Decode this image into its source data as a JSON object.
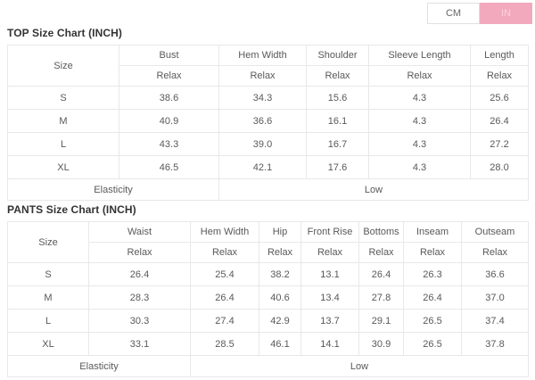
{
  "unit_toggle": {
    "cm_label": "CM",
    "in_label": "IN",
    "active_unit": "IN"
  },
  "colors": {
    "accent_pink": "#f3a9bd",
    "active_text": "#f9d2dd",
    "table_border": "#e8e8e8",
    "body_text": "#595959",
    "title_text": "#333333"
  },
  "top_chart": {
    "title": "TOP Size Chart (INCH)",
    "col_header": "Size",
    "columns": [
      "Bust",
      "Hem Width",
      "Shoulder",
      "Sleeve Length",
      "Length"
    ],
    "sub_headers": [
      "Relax",
      "Relax",
      "Relax",
      "Relax",
      "Relax"
    ],
    "rows": [
      {
        "size": "S",
        "values": [
          "38.6",
          "34.3",
          "15.6",
          "4.3",
          "25.6"
        ]
      },
      {
        "size": "M",
        "values": [
          "40.9",
          "36.6",
          "16.1",
          "4.3",
          "26.4"
        ]
      },
      {
        "size": "L",
        "values": [
          "43.3",
          "39.0",
          "16.7",
          "4.3",
          "27.2"
        ]
      },
      {
        "size": "XL",
        "values": [
          "46.5",
          "42.1",
          "17.6",
          "4.3",
          "28.0"
        ]
      }
    ],
    "elasticity_label": "Elasticity",
    "elasticity_value": "Low"
  },
  "pants_chart": {
    "title": "PANTS Size Chart (INCH)",
    "col_header": "Size",
    "columns": [
      "Waist",
      "Hem Width",
      "Hip",
      "Front Rise",
      "Bottoms",
      "Inseam",
      "Outseam"
    ],
    "sub_headers": [
      "Relax",
      "Relax",
      "Relax",
      "Relax",
      "Relax",
      "Relax",
      "Relax"
    ],
    "rows": [
      {
        "size": "S",
        "values": [
          "26.4",
          "25.4",
          "38.2",
          "13.1",
          "26.4",
          "26.3",
          "36.6"
        ]
      },
      {
        "size": "M",
        "values": [
          "28.3",
          "26.4",
          "40.6",
          "13.4",
          "27.8",
          "26.4",
          "37.0"
        ]
      },
      {
        "size": "L",
        "values": [
          "30.3",
          "27.4",
          "42.9",
          "13.7",
          "29.1",
          "26.5",
          "37.4"
        ]
      },
      {
        "size": "XL",
        "values": [
          "33.1",
          "28.5",
          "46.1",
          "14.1",
          "30.9",
          "26.5",
          "37.8"
        ]
      }
    ],
    "elasticity_label": "Elasticity",
    "elasticity_value": "Low"
  }
}
